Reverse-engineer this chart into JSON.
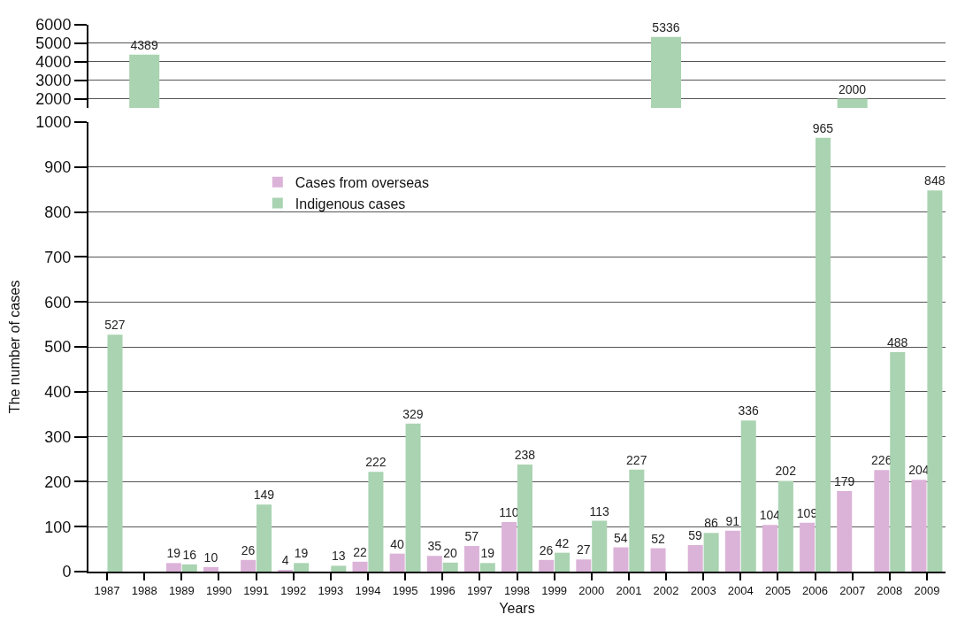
{
  "chart_data": [
    {
      "type": "bar",
      "categories": [
        "1987",
        "1988",
        "1989",
        "1990",
        "1991",
        "1992",
        "1993",
        "1994",
        "1995",
        "1996",
        "1997",
        "1998",
        "1999",
        "2000",
        "2001",
        "2002",
        "2003",
        "2004",
        "2005",
        "2006",
        "2007",
        "2008",
        "2009"
      ],
      "series": [
        {
          "color": "#a9d3b1",
          "values": [
            null,
            4389,
            null,
            null,
            null,
            null,
            null,
            null,
            null,
            null,
            null,
            null,
            null,
            null,
            null,
            5336,
            null,
            null,
            null,
            null,
            2000,
            null,
            null
          ],
          "value_labels": [
            null,
            "4389",
            null,
            null,
            null,
            null,
            null,
            null,
            null,
            null,
            null,
            null,
            null,
            null,
            null,
            "5336",
            null,
            null,
            null,
            null,
            "2000",
            null,
            null
          ]
        }
      ],
      "ylim": [
        1500,
        6000
      ],
      "yticks": [
        2000,
        3000,
        4000,
        5000,
        6000
      ],
      "grid": "y",
      "tick_labels": "y"
    },
    {
      "type": "bar",
      "xlabel": "Years",
      "ylabel": "The number of cases",
      "categories": [
        "1987",
        "1988",
        "1989",
        "1990",
        "1991",
        "1992",
        "1993",
        "1994",
        "1995",
        "1996",
        "1997",
        "1998",
        "1999",
        "2000",
        "2001",
        "2002",
        "2003",
        "2004",
        "2005",
        "2006",
        "2007",
        "2008",
        "2009"
      ],
      "series": [
        {
          "name": "Cases from overseas",
          "color": "#dcb3d8",
          "values": [
            null,
            null,
            19,
            10,
            26,
            4,
            null,
            22,
            40,
            35,
            57,
            110,
            26,
            27,
            54,
            52,
            59,
            91,
            104,
            109,
            179,
            226,
            204
          ],
          "value_labels": [
            null,
            null,
            "19",
            "10",
            "26",
            "4",
            null,
            "22",
            "40",
            "35",
            "57",
            "110",
            "26",
            "27",
            "54",
            "52",
            "59",
            "91",
            "104",
            "109",
            "179",
            "226",
            "204"
          ]
        },
        {
          "name": "Indigenous cases",
          "color": "#a9d3b1",
          "values": [
            527,
            null,
            16,
            null,
            149,
            19,
            13,
            222,
            329,
            20,
            19,
            238,
            42,
            113,
            227,
            null,
            86,
            336,
            202,
            965,
            null,
            488,
            848
          ],
          "value_labels": [
            "527",
            null,
            "16",
            null,
            "149",
            "19",
            "13",
            "222",
            "329",
            "20",
            "19",
            "238",
            "42",
            "113",
            "227",
            null,
            "86",
            "336",
            "202",
            "965",
            null,
            "488",
            "848"
          ]
        }
      ],
      "ylim": [
        0,
        1000
      ],
      "yticks": [
        0,
        100,
        200,
        300,
        400,
        500,
        600,
        700,
        800,
        900,
        1000
      ],
      "grid": "y",
      "legend": "top left"
    }
  ]
}
